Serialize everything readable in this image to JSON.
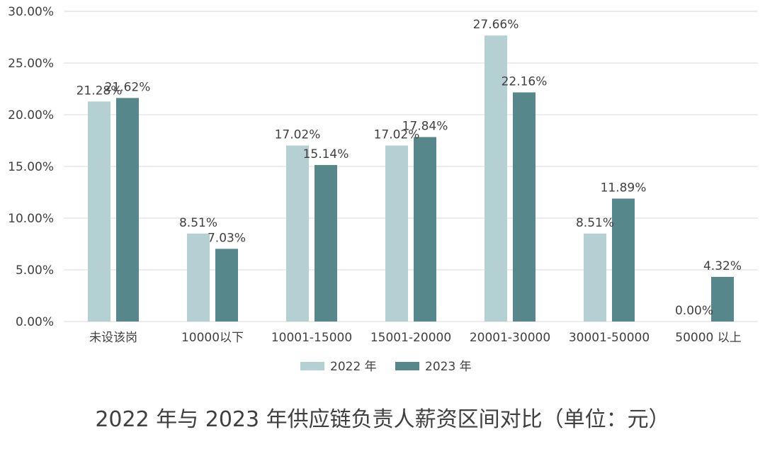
{
  "chart_data": {
    "type": "bar",
    "title": "2022 年与 2023 年供应链负责人薪资区间对比（单位：元）",
    "categories": [
      "未设该岗",
      "10000以下",
      "10001-15000",
      "15001-20000",
      "20001-30000",
      "30001-50000",
      "50000 以上"
    ],
    "series": [
      {
        "name": "2022 年",
        "color": "#b4d0d2",
        "values": [
          21.28,
          8.51,
          17.02,
          17.02,
          27.66,
          8.51,
          0.0
        ],
        "labels": [
          "21.28%",
          "8.51%",
          "17.02%",
          "17.02%",
          "27.66%",
          "8.51%",
          "0.00%"
        ]
      },
      {
        "name": "2023 年",
        "color": "#55878b",
        "values": [
          21.62,
          7.03,
          15.14,
          17.84,
          22.16,
          11.89,
          4.32
        ],
        "labels": [
          "21.62%",
          "7.03%",
          "15.14%",
          "17.84%",
          "22.16%",
          "11.89%",
          "4.32%"
        ]
      }
    ],
    "yticks": [
      "0.00%",
      "5.00%",
      "10.00%",
      "15.00%",
      "20.00%",
      "25.00%",
      "30.00%"
    ],
    "ylim": [
      0,
      30
    ],
    "grid": true,
    "legend_position": "bottom"
  }
}
